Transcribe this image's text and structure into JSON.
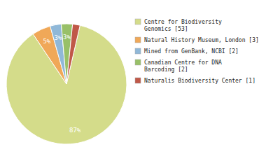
{
  "chart_data": {
    "type": "pie",
    "categories": [
      "Centre for Biodiversity\nGenomics [53]",
      "Natural History Museum, London [3]",
      "Mined from GenBank, NCBI [2]",
      "Canadian Centre for DNA\nBarcoding [2]",
      "Naturalis Biodiversity Center [1]"
    ],
    "values": [
      87,
      5,
      3,
      3,
      2
    ],
    "value_labels": [
      "87%",
      "5%",
      "3%",
      "3%",
      null
    ],
    "colors": [
      "#d4dc8a",
      "#f0a858",
      "#90b8d8",
      "#98c068",
      "#c05848"
    ],
    "data_labels": true,
    "legend": "right"
  }
}
